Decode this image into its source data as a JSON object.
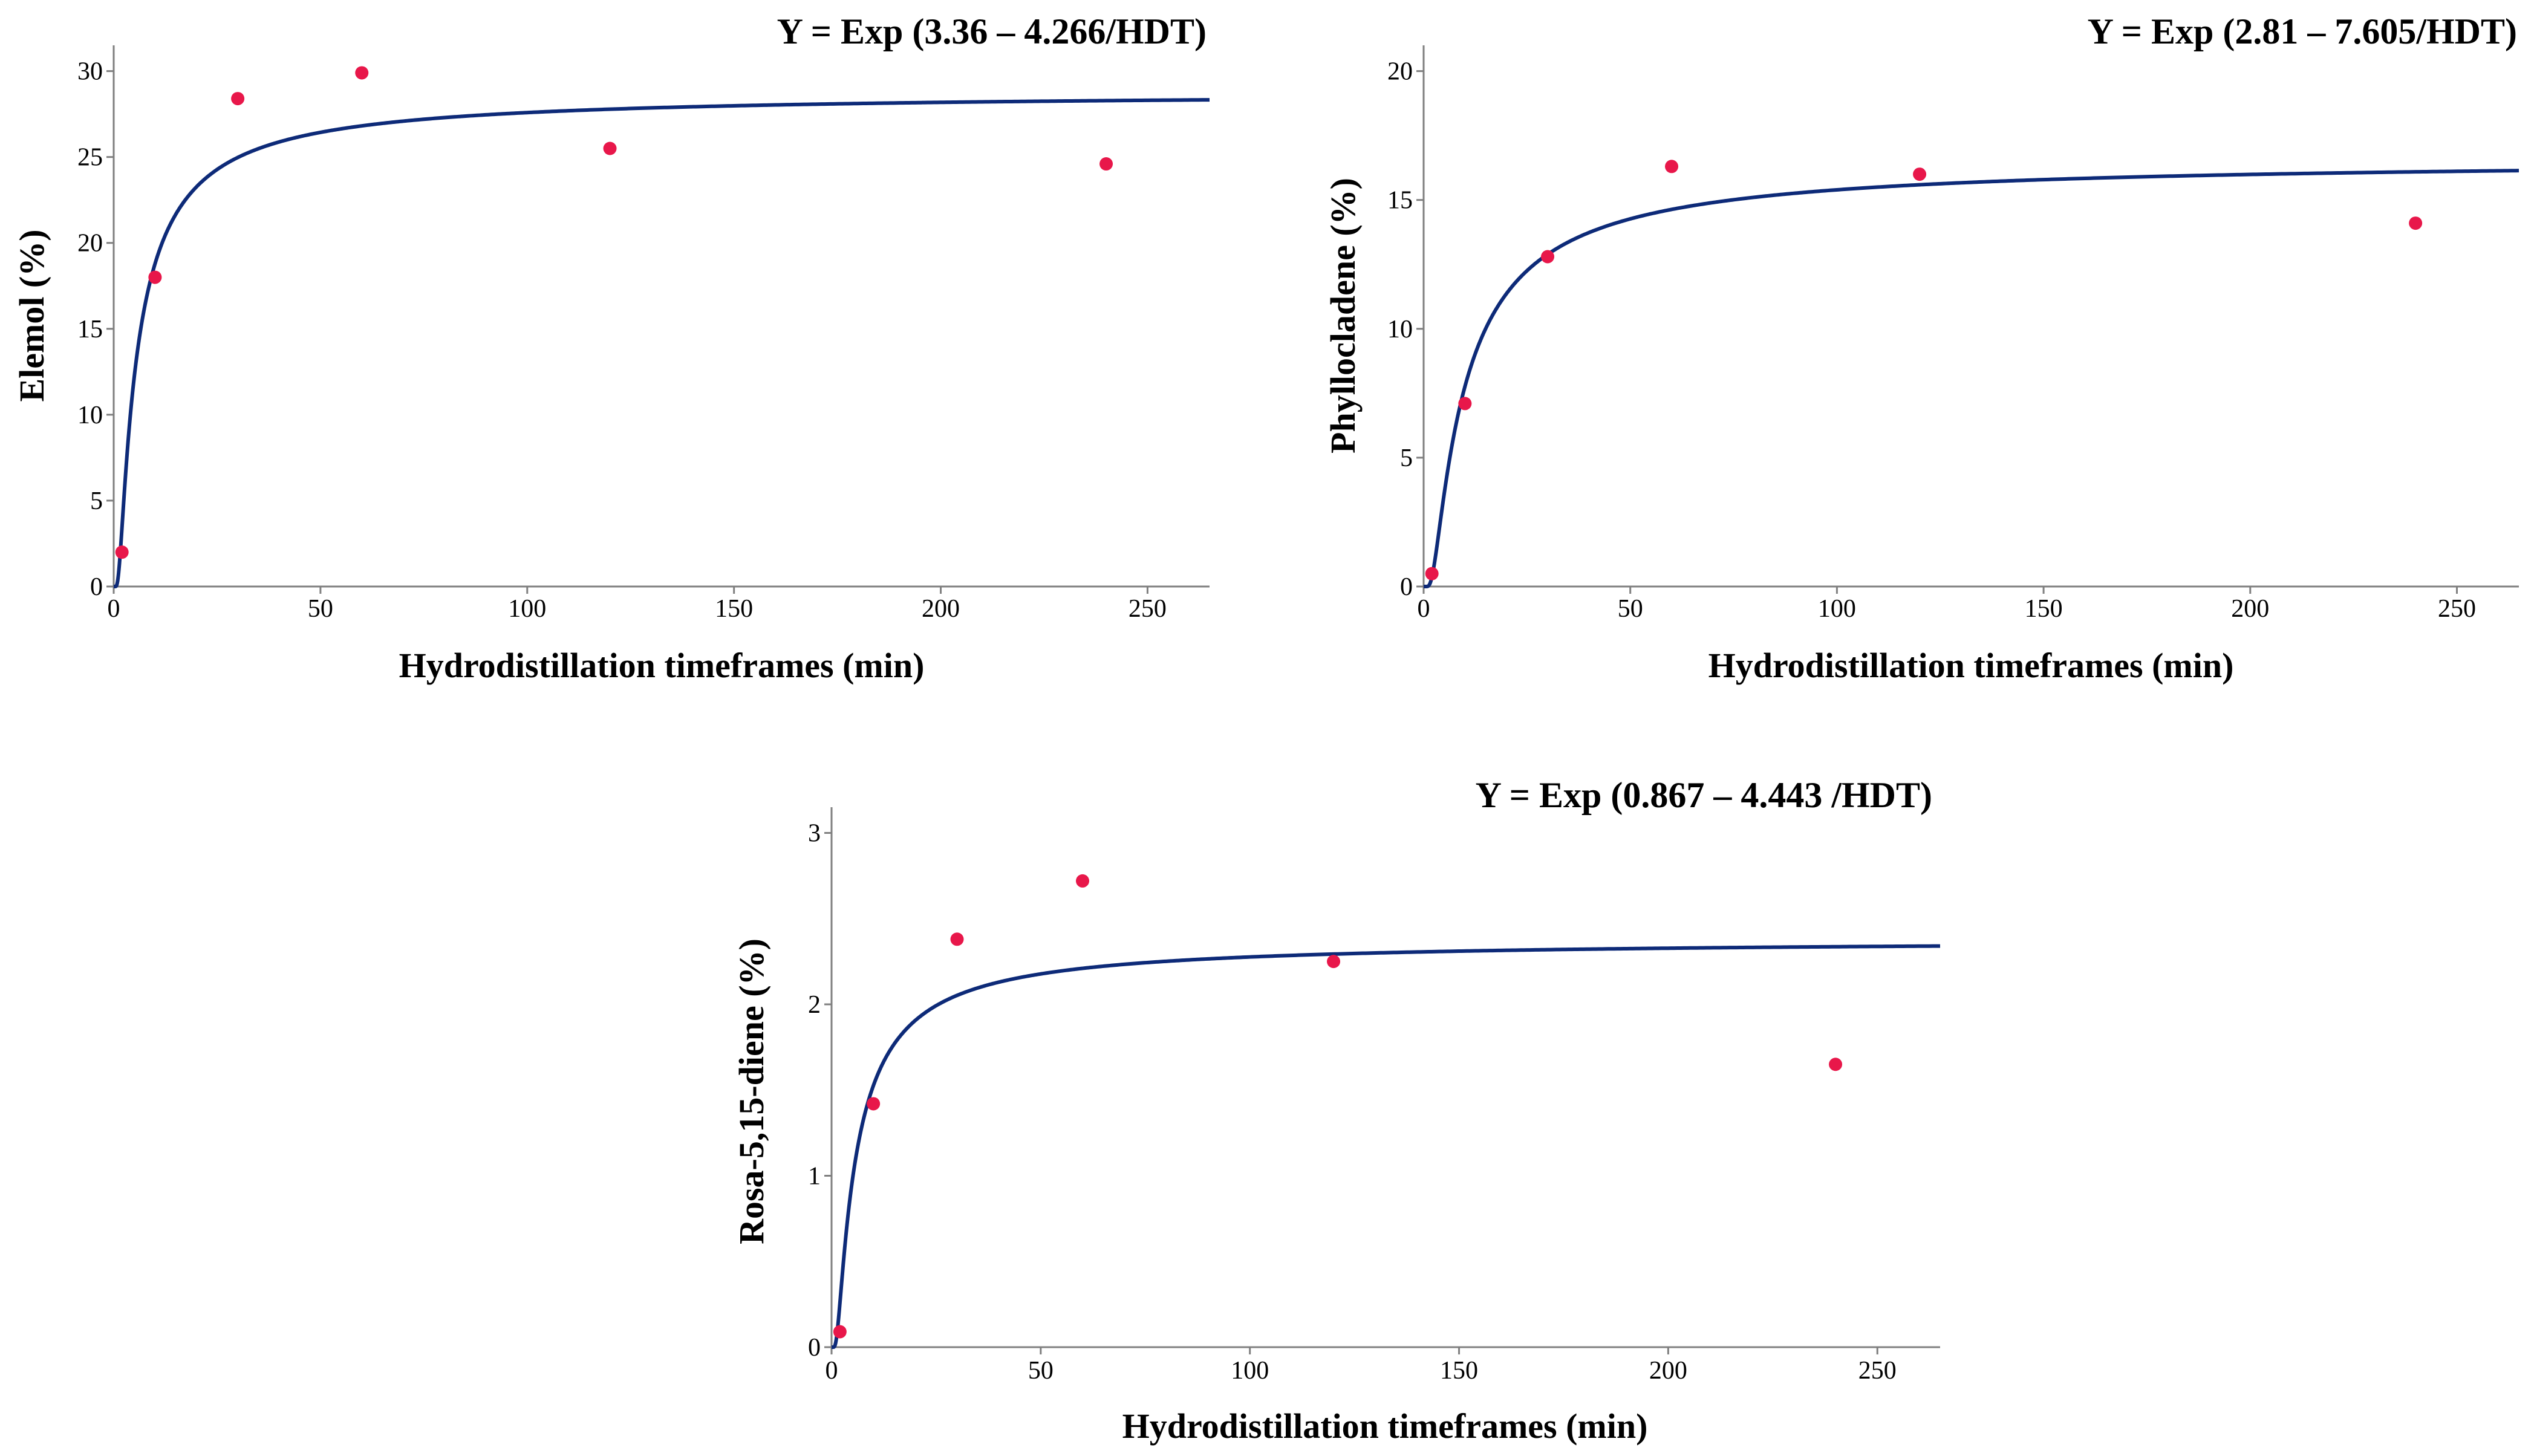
{
  "chart_data": [
    {
      "type": "scatter",
      "title": "Y = Exp (3.36 – 4.266/HDT)",
      "xlabel": "Hydrodistillation timeframes (min)",
      "ylabel": "Elemol (%)",
      "xlim": [
        0,
        265
      ],
      "ylim": [
        0,
        31.5
      ],
      "xticks": [
        "0",
        "50",
        "100",
        "150",
        "200",
        "250"
      ],
      "yticks": [
        "0",
        "5",
        "10",
        "15",
        "20",
        "25",
        "30"
      ],
      "points": {
        "x": [
          2,
          10,
          30,
          60,
          120,
          240
        ],
        "y": [
          2.0,
          18.0,
          28.4,
          29.9,
          25.5,
          24.6
        ]
      },
      "fit": {
        "model": "exp(a - b/x)",
        "a": 3.36,
        "b": 4.266
      },
      "point_color": "#e8174a",
      "line_color": "#0d2a78"
    },
    {
      "type": "scatter",
      "title": "Y = Exp (2.81 – 7.605/HDT)",
      "xlabel": "Hydrodistillation timeframes (min)",
      "ylabel": "Phyllocladene (%)",
      "xlim": [
        0,
        265
      ],
      "ylim": [
        0,
        21
      ],
      "xticks": [
        "0",
        "50",
        "100",
        "150",
        "200",
        "250"
      ],
      "yticks": [
        "0",
        "5",
        "10",
        "15",
        "20"
      ],
      "points": {
        "x": [
          2,
          10,
          30,
          60,
          120,
          240
        ],
        "y": [
          0.5,
          7.1,
          12.8,
          16.3,
          16.0,
          14.1
        ]
      },
      "fit": {
        "model": "exp(a - b/x)",
        "a": 2.81,
        "b": 7.605
      },
      "point_color": "#e8174a",
      "line_color": "#0d2a78"
    },
    {
      "type": "scatter",
      "title": "Y = Exp (0.867 – 4.443 /HDT)",
      "xlabel": "Hydrodistillation timeframes (min)",
      "ylabel": "Rosa-5,15-diene (%)",
      "xlim": [
        0,
        265
      ],
      "ylim": [
        0,
        3.15
      ],
      "xticks": [
        "0",
        "50",
        "100",
        "150",
        "200",
        "250"
      ],
      "yticks": [
        "0",
        "1",
        "2",
        "3"
      ],
      "points": {
        "x": [
          2,
          10,
          30,
          60,
          120,
          240
        ],
        "y": [
          0.09,
          1.42,
          2.38,
          2.72,
          2.25,
          1.65
        ]
      },
      "fit": {
        "model": "exp(a - b/x)",
        "a": 0.867,
        "b": 4.443
      },
      "point_color": "#e8174a",
      "line_color": "#0d2a78"
    }
  ]
}
